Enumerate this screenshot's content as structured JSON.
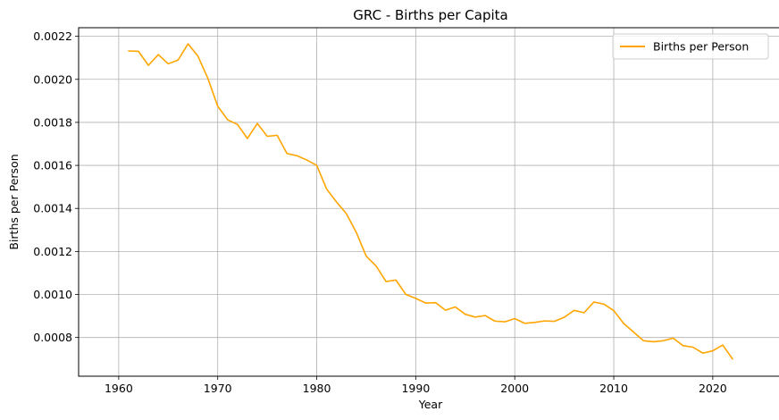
{
  "chart_data": {
    "type": "line",
    "title": "GRC - Births per Capita",
    "xlabel": "Year",
    "ylabel": "Births per Person",
    "xlim": [
      1955.95,
      2027.05
    ],
    "ylim": [
      0.00062,
      0.00224
    ],
    "xticks": [
      1960,
      1970,
      1980,
      1990,
      2000,
      2010,
      2020
    ],
    "yticks": [
      0.0008,
      0.001,
      0.0012,
      0.0014,
      0.0016,
      0.0018,
      0.002,
      0.0022
    ],
    "grid": true,
    "legend_position": "top-right",
    "colors": {
      "line": "#ffa500",
      "grid": "#b0b0b0",
      "axis": "#000000"
    },
    "series": [
      {
        "name": "Births per Person",
        "x": [
          1961,
          1962,
          1963,
          1964,
          1965,
          1966,
          1967,
          1968,
          1969,
          1970,
          1971,
          1972,
          1973,
          1974,
          1975,
          1976,
          1977,
          1978,
          1979,
          1980,
          1981,
          1982,
          1983,
          1984,
          1985,
          1986,
          1987,
          1988,
          1989,
          1990,
          1991,
          1992,
          1993,
          1994,
          1995,
          1996,
          1997,
          1998,
          1999,
          2000,
          2001,
          2002,
          2003,
          2004,
          2005,
          2006,
          2007,
          2008,
          2009,
          2010,
          2011,
          2012,
          2013,
          2014,
          2015,
          2016,
          2017,
          2018,
          2019,
          2020,
          2021,
          2022
        ],
        "y": [
          0.002132,
          0.00213,
          0.002065,
          0.002115,
          0.002072,
          0.00209,
          0.002165,
          0.002108,
          0.002005,
          0.001875,
          0.001812,
          0.00179,
          0.001725,
          0.001795,
          0.001735,
          0.00174,
          0.001655,
          0.001645,
          0.001625,
          0.0016,
          0.00149,
          0.00143,
          0.001375,
          0.001288,
          0.001178,
          0.001132,
          0.00106,
          0.001067,
          0.001,
          0.000982,
          0.00096,
          0.000962,
          0.000927,
          0.000942,
          0.000908,
          0.000895,
          0.000902,
          0.000876,
          0.000873,
          0.000888,
          0.000866,
          0.00087,
          0.000877,
          0.000875,
          0.000894,
          0.000926,
          0.000915,
          0.000965,
          0.000955,
          0.000925,
          0.000865,
          0.000825,
          0.000785,
          0.00078,
          0.000785,
          0.000797,
          0.000762,
          0.000755,
          0.000727,
          0.000738,
          0.000765,
          0.0007
        ]
      }
    ]
  }
}
